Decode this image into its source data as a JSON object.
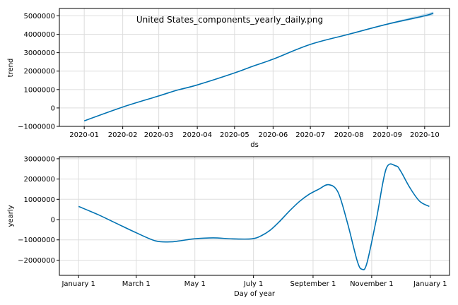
{
  "figure_title": "United States_components_yearly_daily.png",
  "colors": {
    "line": "#0072B2",
    "band": "#a6cbe3",
    "grid": "#dddddd",
    "frame": "#000000"
  },
  "chart_data": [
    {
      "type": "line",
      "xlabel": "ds",
      "ylabel": "trend",
      "x_ticks": [
        "2020-01",
        "2020-02",
        "2020-03",
        "2020-04",
        "2020-05",
        "2020-06",
        "2020-07",
        "2020-08",
        "2020-09",
        "2020-10"
      ],
      "y_ticks": [
        "−1000000",
        "0",
        "1000000",
        "2000000",
        "3000000",
        "4000000",
        "5000000"
      ],
      "xlim": [
        "2019-12-12",
        "2020-10-21"
      ],
      "ylim": [
        -1000000,
        5400000
      ],
      "grid": true,
      "series": [
        {
          "x": [
            "2020-01-01",
            "2020-02-01",
            "2020-03-01",
            "2020-03-15",
            "2020-04-01",
            "2020-05-01",
            "2020-05-15",
            "2020-06-01",
            "2020-07-01",
            "2020-08-01",
            "2020-09-01",
            "2020-10-01",
            "2020-10-08"
          ],
          "y": [
            -700000,
            50000,
            650000,
            950000,
            1250000,
            1900000,
            2250000,
            2650000,
            3450000,
            4000000,
            4550000,
            5000000,
            5150000
          ]
        }
      ]
    },
    {
      "type": "line",
      "xlabel": "Day of year",
      "ylabel": "yearly",
      "x_ticks": [
        "January 1",
        "March 1",
        "May 1",
        "July 1",
        "September 1",
        "November 1",
        "January 1"
      ],
      "y_ticks": [
        "−2000000",
        "−1000000",
        "0",
        "1000000",
        "2000000",
        "3000000"
      ],
      "xlim": [
        -20,
        386
      ],
      "ylim": [
        -2750000,
        3100000
      ],
      "grid": true,
      "series": [
        {
          "x": [
            0,
            20,
            40,
            60,
            80,
            95,
            105,
            120,
            140,
            160,
            180,
            190,
            200,
            210,
            220,
            230,
            240,
            250,
            260,
            270,
            280,
            290,
            295,
            300,
            310,
            320,
            330,
            335,
            345,
            355,
            365
          ],
          "y": [
            650000,
            250000,
            -200000,
            -650000,
            -1050000,
            -1100000,
            -1050000,
            -950000,
            -900000,
            -950000,
            -950000,
            -800000,
            -500000,
            -50000,
            450000,
            900000,
            1250000,
            1500000,
            1720000,
            1350000,
            -200000,
            -2050000,
            -2450000,
            -2150000,
            50000,
            2500000,
            2650000,
            2400000,
            1550000,
            900000,
            650000
          ]
        }
      ]
    }
  ]
}
